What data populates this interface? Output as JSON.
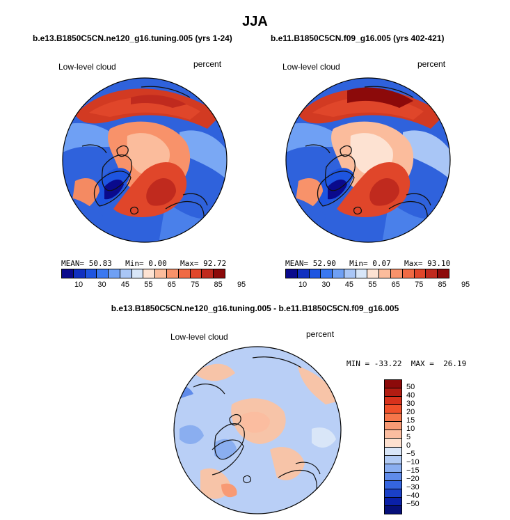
{
  "figure": {
    "season": "JJA",
    "left_case": "b.e13.B1850C5CN.ne120_g16.tuning.005 (yrs 1-24)",
    "right_case": "b.e11.B1850C5CN.f09_g16.005 (yrs 402-421)",
    "diff_case": "b.e13.B1850C5CN.ne120_g16.tuning.005 - b.e11.B1850C5CN.f09_g16.005"
  },
  "left_map": {
    "variable": "Low-level cloud",
    "units": "percent",
    "mean_label": "MEAN=",
    "mean": "50.83",
    "min_label": "Min=",
    "min": "0.00",
    "max_label": "Max=",
    "max": "92.72"
  },
  "right_map": {
    "variable": "Low-level cloud",
    "units": "percent",
    "mean_label": "MEAN=",
    "mean": "52.90",
    "min_label": "Min=",
    "min": "0.07",
    "max_label": "Max=",
    "max": "93.10"
  },
  "diff_map": {
    "variable": "Low-level cloud",
    "units": "percent",
    "minmax": "MIN = -33.22  MAX =  26.19"
  },
  "colorbar_abs": {
    "labels": [
      "10",
      "30",
      "45",
      "55",
      "65",
      "75",
      "85",
      "95"
    ],
    "colors": [
      "#0a0a8c",
      "#1030c0",
      "#1e55e0",
      "#3a78f0",
      "#6fa0f4",
      "#a9c6f6",
      "#d8e6f8",
      "#fde2d2",
      "#fbbc9c",
      "#f8926a",
      "#f06a44",
      "#e0462a",
      "#c02a1e",
      "#8c0a0a"
    ]
  },
  "colorbar_diff": {
    "labels": [
      "50",
      "40",
      "30",
      "20",
      "15",
      "10",
      "5",
      "0",
      "−5",
      "−10",
      "−15",
      "−20",
      "−30",
      "−40",
      "−50"
    ],
    "colors": [
      "#8c0a0a",
      "#b21c12",
      "#d8321c",
      "#f0502a",
      "#f6764a",
      "#f89a74",
      "#fbbda0",
      "#fde0cf",
      "#d9e6f8",
      "#b2cbf4",
      "#8aaef0",
      "#5f8bea",
      "#3565e0",
      "#1a40c8",
      "#0a20a8",
      "#06107a"
    ]
  },
  "colors": {
    "ocean_blue": "#2f62dc",
    "deep_red": "#d23a22",
    "salmon": "#f48a62",
    "diff_bg": "#b9cff6",
    "diff_pos": "#f7c4a8"
  }
}
